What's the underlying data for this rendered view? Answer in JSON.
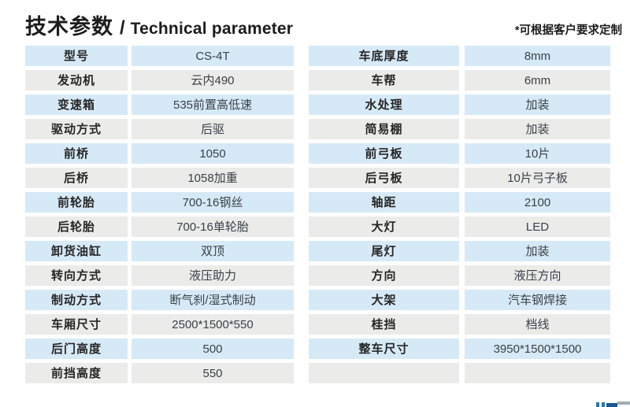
{
  "header": {
    "title_zh": "技术参数",
    "title_divider": "/",
    "title_en": "Technical parameter",
    "note": "*可根据客户要求定制"
  },
  "colors": {
    "row_blue": "#d6e9f6",
    "row_gray": "#ebebe9",
    "label_text": "#262626",
    "value_text": "#3a4148",
    "logo_blue": "#2f74ae",
    "logo_dark_blue": "#19598f",
    "logo_gray": "#a3adb1",
    "background": "#ffffff"
  },
  "spec_table_left": {
    "rows": [
      {
        "label": "型号",
        "value": "CS-4T"
      },
      {
        "label": "发动机",
        "value": "云内490"
      },
      {
        "label": "变速箱",
        "value": "535前置高低速"
      },
      {
        "label": "驱动方式",
        "value": "后驱"
      },
      {
        "label": "前桥",
        "value": "1050"
      },
      {
        "label": "后桥",
        "value": "1058加重"
      },
      {
        "label": "前轮胎",
        "value": "700-16钢丝"
      },
      {
        "label": "后轮胎",
        "value": "700-16单轮胎"
      },
      {
        "label": "卸货油缸",
        "value": "双顶"
      },
      {
        "label": "转向方式",
        "value": "液压助力"
      },
      {
        "label": "制动方式",
        "value": "断气刹/湿式制动"
      },
      {
        "label": "车厢尺寸",
        "value": "2500*1500*550"
      },
      {
        "label": "后门高度",
        "value": "500"
      },
      {
        "label": "前挡高度",
        "value": "550"
      }
    ]
  },
  "spec_table_right": {
    "rows": [
      {
        "label": "车底厚度",
        "value": "8mm"
      },
      {
        "label": "车帮",
        "value": "6mm"
      },
      {
        "label": "水处理",
        "value": "加装"
      },
      {
        "label": "简易棚",
        "value": "加装"
      },
      {
        "label": "前弓板",
        "value": "10片"
      },
      {
        "label": "后弓板",
        "value": "10片弓子板"
      },
      {
        "label": "轴距",
        "value": "2100"
      },
      {
        "label": "大灯",
        "value": "LED"
      },
      {
        "label": "尾灯",
        "value": "加装"
      },
      {
        "label": "方向",
        "value": "液压方向"
      },
      {
        "label": "大架",
        "value": "汽车钢焊接"
      },
      {
        "label": "桂挡",
        "value": "档线"
      },
      {
        "label": "整车尺寸",
        "value": "3950*1500*1500"
      },
      {
        "label": "",
        "value": ""
      }
    ]
  }
}
